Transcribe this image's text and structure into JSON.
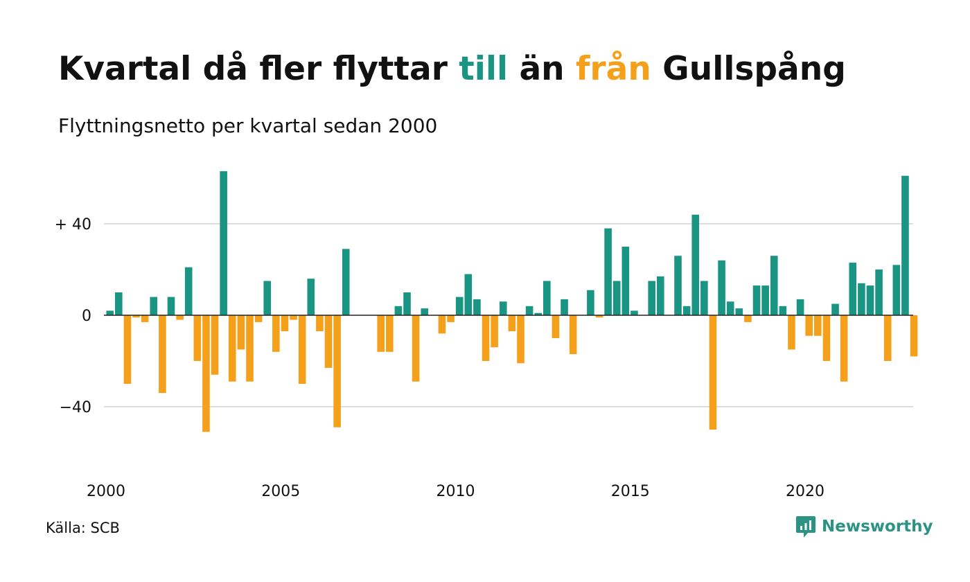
{
  "header": {
    "title_parts": [
      {
        "text": "Kvartal då fler flyttar ",
        "color": "#111111"
      },
      {
        "text": "till",
        "color": "#1a9583"
      },
      {
        "text": " än ",
        "color": "#111111"
      },
      {
        "text": "från",
        "color": "#f5a01a"
      },
      {
        "text": " Gullspång",
        "color": "#111111"
      }
    ],
    "subtitle": "Flyttningsnetto per kvartal sedan 2000"
  },
  "footer": {
    "source": "Källa: SCB",
    "brand": "Newsworthy",
    "brand_icon": "newsworthy-logo-icon",
    "brand_color": "#2a9384"
  },
  "colors": {
    "positive": "#1a9583",
    "negative": "#f5a01a",
    "grid": "#dddddd",
    "zero_line": "#222222"
  },
  "chart_data": {
    "type": "bar",
    "title": "Kvartal då fler flyttar till än från Gullspång",
    "subtitle": "Flyttningsnetto per kvartal sedan 2000",
    "x_start": 2000.0,
    "x_step": 0.25,
    "x_ticks": [
      2000,
      2005,
      2010,
      2015,
      2020
    ],
    "x_tick_labels": [
      "2000",
      "2005",
      "2010",
      "2015",
      "2020"
    ],
    "y_ticks": [
      -40,
      0,
      40
    ],
    "y_tick_labels": [
      "−40",
      "0",
      "+ 40"
    ],
    "ylim": [
      -62,
      66
    ],
    "grid": true,
    "values": [
      2,
      10,
      -30,
      -1,
      -3,
      8,
      -34,
      8,
      -2,
      21,
      -20,
      -51,
      -26,
      63,
      -29,
      -15,
      -29,
      -3,
      15,
      -16,
      -7,
      -2,
      -30,
      16,
      -7,
      -23,
      -49,
      29,
      0,
      0,
      0,
      -16,
      -16,
      4,
      10,
      -29,
      3,
      0,
      -8,
      -3,
      8,
      18,
      7,
      -20,
      -14,
      6,
      -7,
      -21,
      4,
      1,
      15,
      -10,
      7,
      -17,
      0,
      11,
      -1,
      38,
      15,
      30,
      2,
      0,
      15,
      17,
      0,
      26,
      4,
      44,
      15,
      -50,
      24,
      6,
      3,
      -3,
      13,
      13,
      26,
      4,
      -15,
      7,
      -9,
      -9,
      -20,
      5,
      -29,
      23,
      14,
      13,
      20,
      -20,
      22,
      61,
      -18
    ]
  }
}
